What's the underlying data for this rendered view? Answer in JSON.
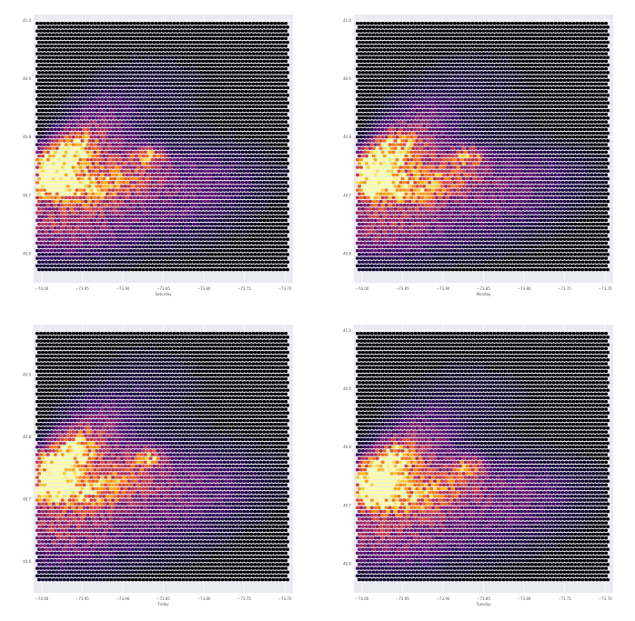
{
  "colors": {
    "plot_background": "#eaeaf2",
    "hexbin_empty": "#000004",
    "colormap": "inferno",
    "grid": "#ffffff"
  },
  "chart_data": [
    {
      "type": "heatmap",
      "title": "",
      "xlabel": "Saturday",
      "ylabel": "",
      "xticks": [
        "−74.00",
        "−73.95",
        "−73.90",
        "−73.85",
        "−73.80",
        "−73.75",
        "−73.70"
      ],
      "yticks": [
        "40.6",
        "40.7",
        "40.8",
        "40.9",
        "41.0"
      ],
      "xlim": [
        -74.01,
        -73.69
      ],
      "ylim": [
        40.55,
        41.01
      ],
      "grid": true,
      "legend": "none"
    },
    {
      "type": "heatmap",
      "title": "",
      "xlabel": "Monday",
      "ylabel": "",
      "xticks": [
        "−74.00",
        "−73.95",
        "−73.90",
        "−73.85",
        "−73.80",
        "−73.75",
        "−73.70"
      ],
      "yticks": [
        "40.6",
        "40.7",
        "40.8",
        "40.9",
        "41.0"
      ],
      "xlim": [
        -74.01,
        -73.69
      ],
      "ylim": [
        40.55,
        41.01
      ],
      "grid": true,
      "legend": "none"
    },
    {
      "type": "heatmap",
      "title": "",
      "xlabel": "Friday",
      "ylabel": "",
      "xticks": [
        "−74.00",
        "−73.95",
        "−73.90",
        "−73.85",
        "−73.80",
        "−73.75",
        "−73.70"
      ],
      "yticks": [
        "40.6",
        "40.7",
        "40.8",
        "40.9"
      ],
      "xlim": [
        -74.01,
        -73.69
      ],
      "ylim": [
        40.55,
        40.98
      ],
      "grid": true,
      "legend": "none"
    },
    {
      "type": "heatmap",
      "title": "",
      "xlabel": "Tuesday",
      "ylabel": "",
      "xticks": [
        "−74.00",
        "−73.95",
        "−73.90",
        "−73.85",
        "−73.80",
        "−73.75",
        "−73.70"
      ],
      "yticks": [
        "40.6",
        "40.7",
        "40.8",
        "40.9",
        "41.0"
      ],
      "xlim": [
        -74.01,
        -73.69
      ],
      "ylim": [
        40.55,
        41.01
      ],
      "grid": true,
      "legend": "none"
    }
  ]
}
